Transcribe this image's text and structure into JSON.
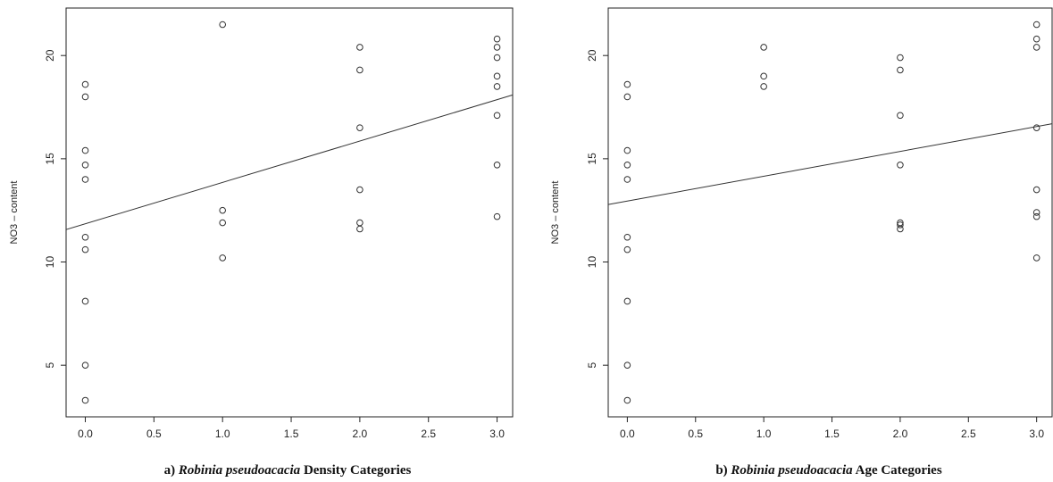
{
  "chart_data": [
    {
      "type": "scatter",
      "panel": "a)",
      "caption_italic": "Robinia pseudoacacia",
      "caption_rest": "Density Categories",
      "xlabel": "",
      "ylabel": "NO3 – content",
      "xlim": [
        -0.14,
        3.12
      ],
      "ylim": [
        2.5,
        22.3
      ],
      "xticks": [
        "0.0",
        "0.5",
        "1.0",
        "1.5",
        "2.0",
        "2.5",
        "3.0"
      ],
      "yticks": [
        "5",
        "10",
        "15",
        "20"
      ],
      "points": [
        {
          "x": 0,
          "y": 18.6
        },
        {
          "x": 0,
          "y": 18.0
        },
        {
          "x": 0,
          "y": 15.4
        },
        {
          "x": 0,
          "y": 14.7
        },
        {
          "x": 0,
          "y": 14.0
        },
        {
          "x": 0,
          "y": 11.2
        },
        {
          "x": 0,
          "y": 10.6
        },
        {
          "x": 0,
          "y": 8.1
        },
        {
          "x": 0,
          "y": 5.0
        },
        {
          "x": 0,
          "y": 3.3
        },
        {
          "x": 1,
          "y": 21.5
        },
        {
          "x": 1,
          "y": 12.5
        },
        {
          "x": 1,
          "y": 11.9
        },
        {
          "x": 1,
          "y": 10.2
        },
        {
          "x": 2,
          "y": 20.4
        },
        {
          "x": 2,
          "y": 19.3
        },
        {
          "x": 2,
          "y": 16.5
        },
        {
          "x": 2,
          "y": 13.5
        },
        {
          "x": 2,
          "y": 11.9
        },
        {
          "x": 2,
          "y": 11.6
        },
        {
          "x": 3,
          "y": 20.8
        },
        {
          "x": 3,
          "y": 20.4
        },
        {
          "x": 3,
          "y": 19.9
        },
        {
          "x": 3,
          "y": 19.0
        },
        {
          "x": 3,
          "y": 18.5
        },
        {
          "x": 3,
          "y": 17.1
        },
        {
          "x": 3,
          "y": 14.7
        },
        {
          "x": 3,
          "y": 12.2
        }
      ],
      "regression": {
        "intercept": 11.85,
        "slope": 2.0
      }
    },
    {
      "type": "scatter",
      "panel": "b)",
      "caption_italic": "Robinia pseudoacacia",
      "caption_rest": "Age Categories",
      "xlabel": "",
      "ylabel": "NO3 – content",
      "xlim": [
        -0.14,
        3.12
      ],
      "ylim": [
        2.5,
        22.3
      ],
      "xticks": [
        "0.0",
        "0.5",
        "1.0",
        "1.5",
        "2.0",
        "2.5",
        "3.0"
      ],
      "yticks": [
        "5",
        "10",
        "15",
        "20"
      ],
      "points": [
        {
          "x": 0,
          "y": 18.6
        },
        {
          "x": 0,
          "y": 18.0
        },
        {
          "x": 0,
          "y": 15.4
        },
        {
          "x": 0,
          "y": 14.7
        },
        {
          "x": 0,
          "y": 14.0
        },
        {
          "x": 0,
          "y": 11.2
        },
        {
          "x": 0,
          "y": 10.6
        },
        {
          "x": 0,
          "y": 8.1
        },
        {
          "x": 0,
          "y": 5.0
        },
        {
          "x": 0,
          "y": 3.3
        },
        {
          "x": 1,
          "y": 20.4
        },
        {
          "x": 1,
          "y": 19.0
        },
        {
          "x": 1,
          "y": 18.5
        },
        {
          "x": 2,
          "y": 19.9
        },
        {
          "x": 2,
          "y": 19.3
        },
        {
          "x": 2,
          "y": 17.1
        },
        {
          "x": 2,
          "y": 14.7
        },
        {
          "x": 2,
          "y": 11.9
        },
        {
          "x": 2,
          "y": 11.8
        },
        {
          "x": 2,
          "y": 11.6
        },
        {
          "x": 3,
          "y": 21.5
        },
        {
          "x": 3,
          "y": 20.8
        },
        {
          "x": 3,
          "y": 20.4
        },
        {
          "x": 3,
          "y": 16.5
        },
        {
          "x": 3,
          "y": 13.5
        },
        {
          "x": 3,
          "y": 12.4
        },
        {
          "x": 3,
          "y": 12.2
        },
        {
          "x": 3,
          "y": 10.2
        }
      ],
      "regression": {
        "intercept": 12.95,
        "slope": 1.2
      }
    }
  ]
}
